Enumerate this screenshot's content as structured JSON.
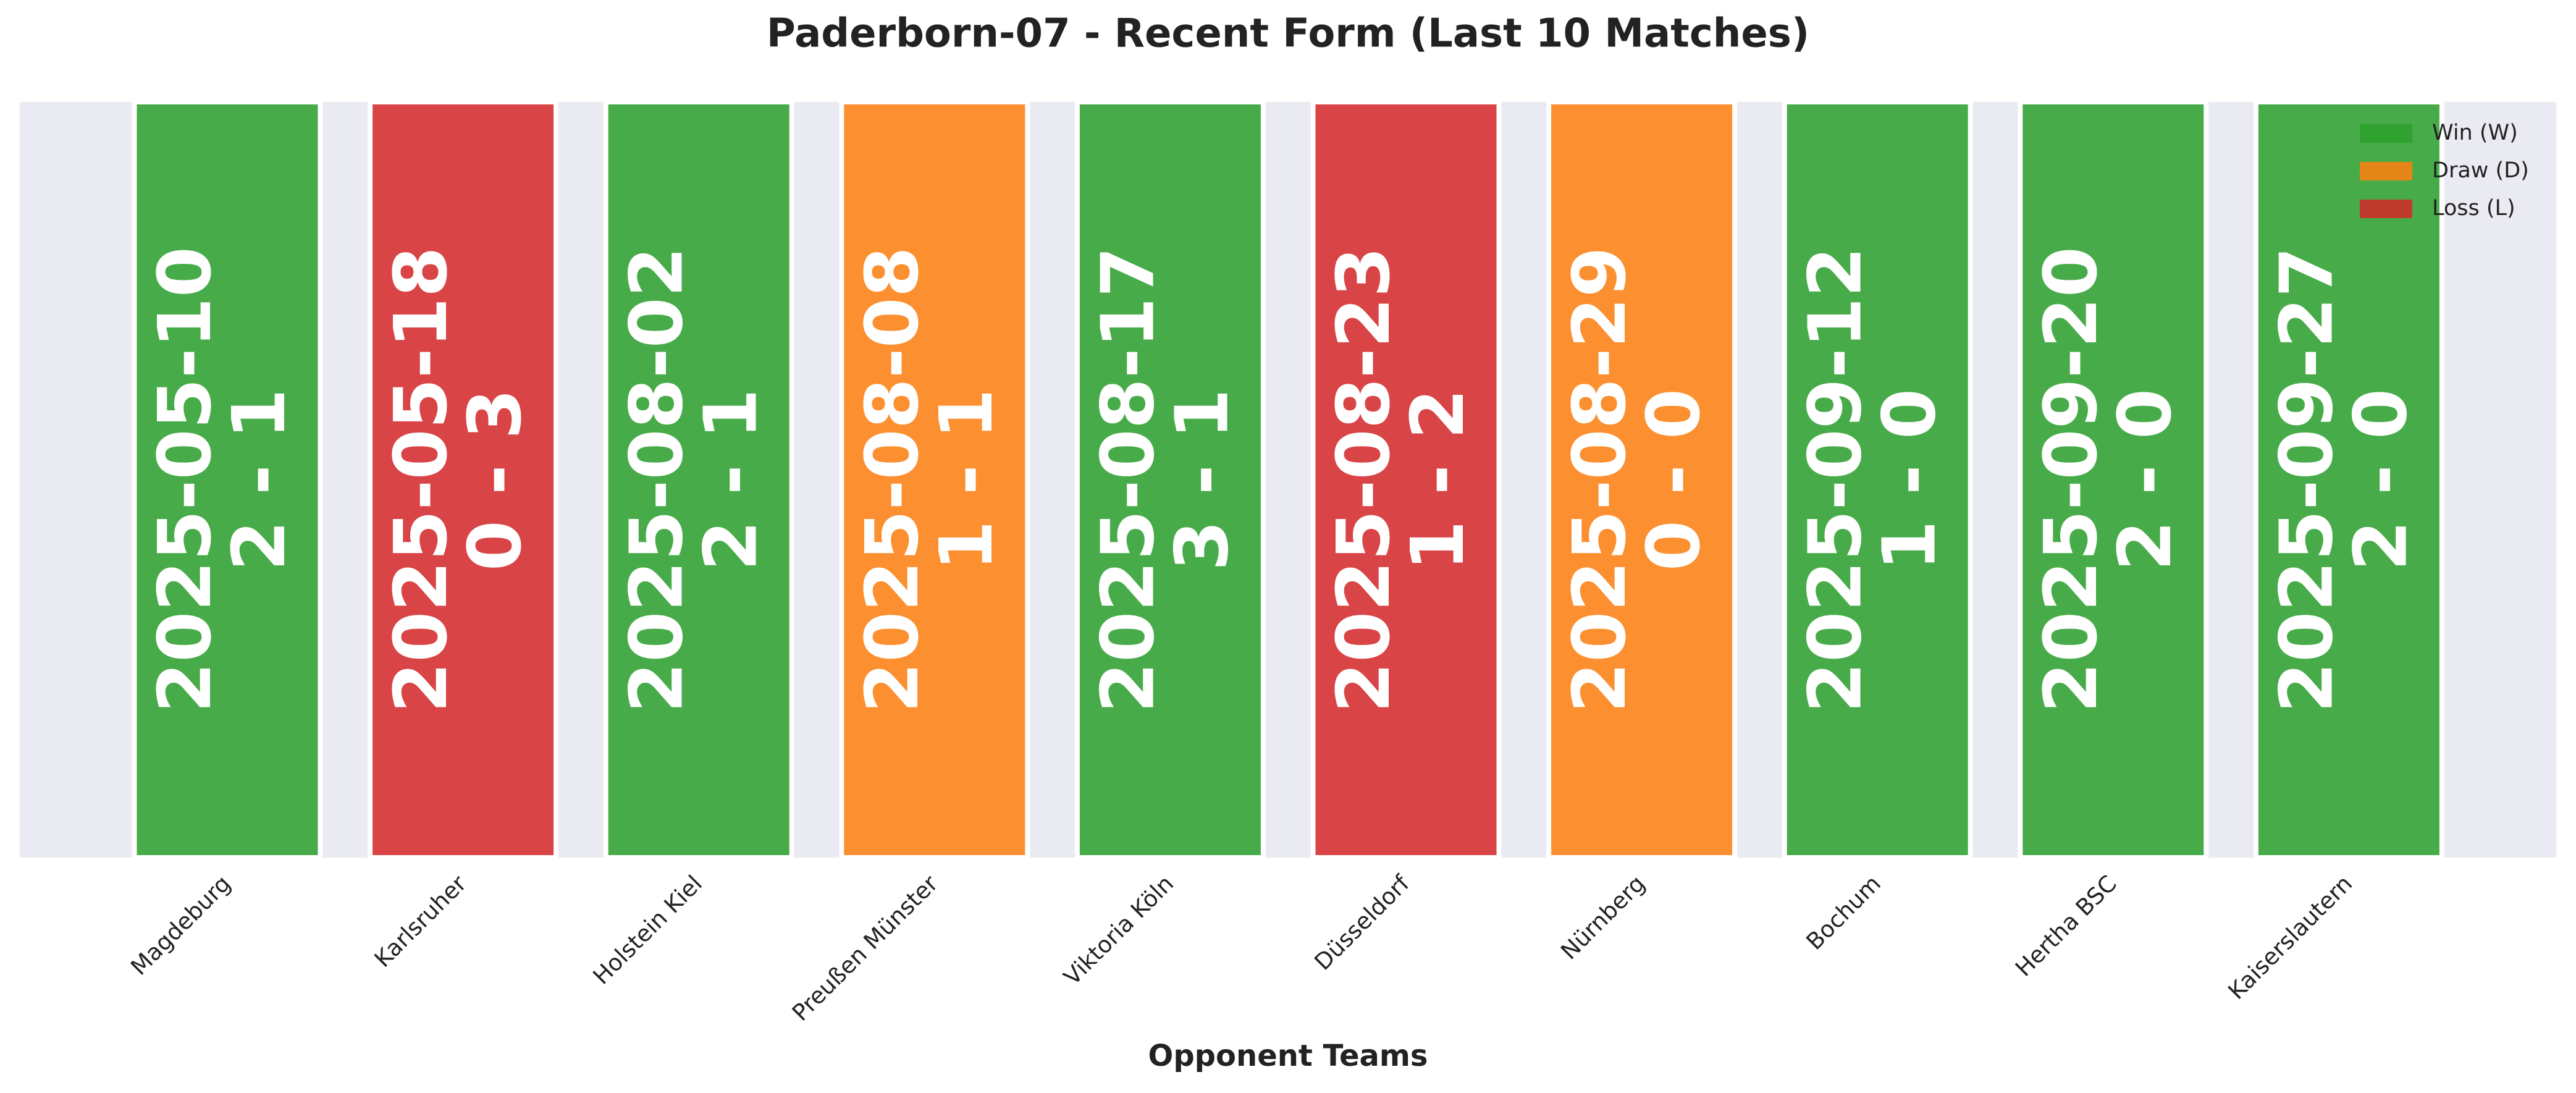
{
  "chart_data": {
    "type": "bar",
    "title": "Paderborn-07 - Recent Form (Last 10 Matches)",
    "x_label": "Opponent Teams",
    "categories": [
      "Magdeburg",
      "Karlsruher",
      "Holstein Kiel",
      "Preußen Münster",
      "Viktoria Köln",
      "Düsseldorf",
      "Nürnberg",
      "Bochum",
      "Hertha BSC",
      "Kaiserslautern"
    ],
    "values": [
      1,
      1,
      1,
      1,
      1,
      1,
      1,
      1,
      1,
      1
    ],
    "dates": [
      "2025-05-10",
      "2025-05-18",
      "2025-08-02",
      "2025-08-08",
      "2025-08-17",
      "2025-08-23",
      "2025-08-29",
      "2025-09-12",
      "2025-09-20",
      "2025-09-27"
    ],
    "scores": [
      "2 - 1",
      "0 - 3",
      "2 - 1",
      "1 - 1",
      "3 - 1",
      "1 - 2",
      "0 - 0",
      "1 - 0",
      "2 - 0",
      "2 - 0"
    ],
    "colors": [
      "#2ca02c",
      "#d62728",
      "#2ca02c",
      "#ff7f0e",
      "#2ca02c",
      "#d62728",
      "#ff7f0e",
      "#2ca02c",
      "#2ca02c",
      "#2ca02c"
    ],
    "ylim": [
      0,
      1
    ],
    "legend_position": "upper right",
    "legend": [
      {
        "name": "Win (W)",
        "color": "#2ca02c"
      },
      {
        "name": "Draw (D)",
        "color": "#ff7f0e"
      },
      {
        "name": "Loss (L)",
        "color": "#d62728"
      }
    ]
  }
}
